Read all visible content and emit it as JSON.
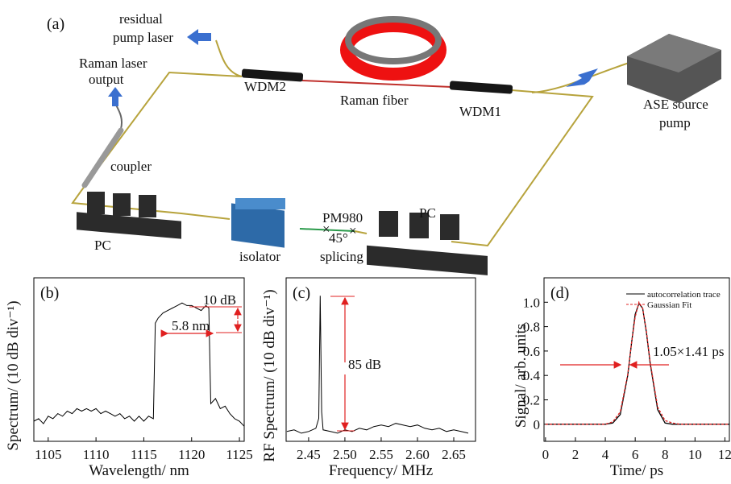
{
  "diagram": {
    "panel_label": "(a)",
    "labels": [
      {
        "lines": [
          "residual",
          "pump laser"
        ]
      },
      {
        "lines": [
          "Raman laser",
          "output"
        ]
      },
      {
        "lines": [
          "WDM2"
        ]
      },
      {
        "lines": [
          "Raman fiber"
        ]
      },
      {
        "lines": [
          "WDM1"
        ]
      },
      {
        "lines": [
          "ASE source",
          "pump"
        ]
      },
      {
        "lines": [
          "coupler"
        ]
      },
      {
        "lines": [
          "PC"
        ]
      },
      {
        "lines": [
          "isolator"
        ]
      },
      {
        "lines": [
          "PM980"
        ]
      },
      {
        "lines": [
          "45°",
          "splicing"
        ]
      },
      {
        "lines": [
          "PC"
        ]
      }
    ]
  },
  "chart_data": [
    {
      "type": "line",
      "panel_label": "(b)",
      "xlabel": "Wavelength/ nm",
      "ylabel": "Spectrum/ (10 dB div⁻¹)",
      "color": "#000000",
      "x": [
        1103.5,
        1104,
        1104.5,
        1105,
        1105.5,
        1106,
        1106.5,
        1107,
        1107.5,
        1108,
        1108.5,
        1109,
        1109.5,
        1110,
        1110.5,
        1111,
        1111.5,
        1112,
        1112.5,
        1113,
        1113.5,
        1114,
        1114.5,
        1115,
        1115.5,
        1116,
        1116.2,
        1116.5,
        1117,
        1117.5,
        1118,
        1118.5,
        1119,
        1119.5,
        1120,
        1120.5,
        1121,
        1121.5,
        1121.8,
        1122,
        1122.5,
        1123,
        1123.5,
        1124,
        1124.5,
        1125,
        1125.5
      ],
      "values": [
        -47,
        -46,
        -48,
        -45,
        -46,
        -44,
        -45,
        -43,
        -44,
        -42,
        -43,
        -42,
        -43,
        -42,
        -44,
        -43,
        -44,
        -45,
        -44,
        -46,
        -45,
        -47,
        -45,
        -47,
        -45,
        -46,
        -8,
        -6,
        -4,
        -3,
        -2,
        -1,
        0,
        -1,
        -1,
        -2,
        -3,
        -1,
        -2,
        -40,
        -38,
        -42,
        -41,
        -44,
        -46,
        -47,
        -49
      ],
      "xlim": [
        1103.5,
        1125.5
      ],
      "ylim": [
        -55,
        10
      ],
      "xticks": [
        1105,
        1110,
        1115,
        1120,
        1125
      ],
      "annotations": [
        "10 dB",
        "5.8 nm"
      ]
    },
    {
      "type": "line",
      "panel_label": "(c)",
      "xlabel": "Frequency/ MHz",
      "ylabel": "RF Spectrum/ (10 dB div⁻¹)",
      "color": "#000000",
      "x": [
        2.42,
        2.43,
        2.44,
        2.45,
        2.455,
        2.46,
        2.464,
        2.466,
        2.468,
        2.47,
        2.48,
        2.49,
        2.5,
        2.51,
        2.52,
        2.53,
        2.54,
        2.55,
        2.56,
        2.57,
        2.58,
        2.59,
        2.6,
        2.61,
        2.62,
        2.63,
        2.64,
        2.65,
        2.66,
        2.67
      ],
      "values": [
        -94,
        -93,
        -95,
        -94,
        -93,
        -92,
        -86,
        -11,
        -82,
        -93,
        -94,
        -95,
        -93,
        -94,
        -92,
        -93,
        -91,
        -90,
        -91,
        -89,
        -90,
        -91,
        -90,
        -92,
        -93,
        -92,
        -94,
        -93,
        -94,
        -95
      ],
      "xlim": [
        2.419,
        2.68
      ],
      "ylim": [
        -100,
        0
      ],
      "xticks": [
        2.45,
        {
          "value": 2.5,
          "label": "2.50"
        },
        2.55,
        {
          "value": 2.6,
          "label": "2.60"
        },
        2.65
      ],
      "annotations": [
        "85 dB"
      ]
    },
    {
      "type": "line",
      "panel_label": "(d)",
      "xlabel": "Time/ ps",
      "ylabel": "Signal/ arb. units",
      "x": [
        0,
        1,
        2,
        3,
        4,
        4.5,
        5,
        5.5,
        5.75,
        6,
        6.25,
        6.5,
        6.75,
        7,
        7.5,
        8,
        8.5,
        9,
        10,
        11,
        12.3
      ],
      "series": [
        {
          "name": "autocorrelation trace",
          "color": "#000000",
          "values": [
            0,
            0,
            0,
            0,
            0,
            0.01,
            0.08,
            0.4,
            0.66,
            0.9,
            0.99,
            0.95,
            0.75,
            0.5,
            0.12,
            0.01,
            0,
            0,
            0,
            0,
            0
          ]
        },
        {
          "name": "Gaussian Fit",
          "color": "#e02020",
          "dashed": true,
          "values": [
            0,
            0,
            0,
            0,
            0,
            0.02,
            0.1,
            0.41,
            0.66,
            0.88,
            1,
            0.95,
            0.76,
            0.51,
            0.14,
            0.03,
            0.01,
            0,
            0,
            0,
            0
          ]
        }
      ],
      "xlim": [
        -0.1,
        12.3
      ],
      "ylim": [
        -0.14,
        1.2
      ],
      "xticks": [
        0,
        2,
        4,
        6,
        8,
        10,
        12
      ],
      "yticks": [
        0,
        0.2,
        0.4,
        0.6,
        0.8,
        {
          "value": 1,
          "label": "1.0"
        }
      ],
      "annotations": [
        "1.05×1.41 ps"
      ]
    }
  ]
}
